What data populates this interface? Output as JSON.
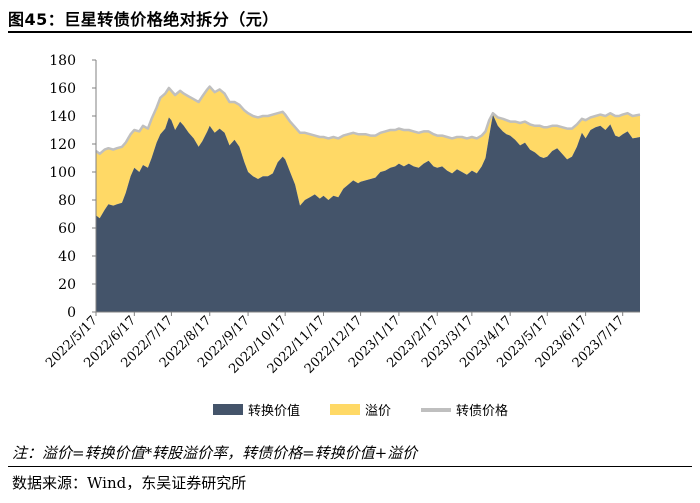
{
  "header": {
    "title": "图45：巨星转债价格绝对拆分（元）"
  },
  "footer": {
    "note": "注：溢价=转换价值*转股溢价率，转债价格=转换价值+溢价",
    "source": "数据来源：Wind，东吴证券研究所"
  },
  "colors": {
    "conversion": "#44546a",
    "premium": "#ffd966",
    "price": "#bfbfbf",
    "axis": "#808080"
  },
  "chart_data": {
    "type": "area",
    "title": "巨星转债价格绝对拆分（元）",
    "ylim": [
      0,
      180
    ],
    "yticks": [
      0,
      20,
      40,
      60,
      80,
      100,
      120,
      140,
      160,
      180
    ],
    "xticks": [
      "2022/5/17",
      "2022/6/17",
      "2022/7/17",
      "2022/8/17",
      "2022/9/17",
      "2022/10/17",
      "2022/11/17",
      "2022/12/17",
      "2023/1/17",
      "2023/2/17",
      "2023/3/17",
      "2023/4/17",
      "2023/5/17",
      "2023/6/17",
      "2023/7/17"
    ],
    "x_range": [
      "2022/5/17",
      "2023/7/31"
    ],
    "legend": [
      "转换价值",
      "溢价",
      "转债价格"
    ],
    "legend_position": "bottom",
    "series": [
      {
        "name": "转换价值",
        "kind": "stacked-area",
        "x": [
          "2022/5/17",
          "2022/5/20",
          "2022/5/24",
          "2022/5/27",
          "2022/5/31",
          "2022/6/3",
          "2022/6/7",
          "2022/6/10",
          "2022/6/14",
          "2022/6/17",
          "2022/6/21",
          "2022/6/24",
          "2022/6/28",
          "2022/7/1",
          "2022/7/5",
          "2022/7/8",
          "2022/7/12",
          "2022/7/15",
          "2022/7/17",
          "2022/7/20",
          "2022/7/24",
          "2022/7/27",
          "2022/7/31",
          "2022/8/4",
          "2022/8/8",
          "2022/8/11",
          "2022/8/15",
          "2022/8/17",
          "2022/8/21",
          "2022/8/25",
          "2022/8/29",
          "2022/9/2",
          "2022/9/6",
          "2022/9/10",
          "2022/9/14",
          "2022/9/17",
          "2022/9/21",
          "2022/9/25",
          "2022/9/29",
          "2022/10/3",
          "2022/10/7",
          "2022/10/11",
          "2022/10/15",
          "2022/10/17",
          "2022/10/21",
          "2022/10/25",
          "2022/10/29",
          "2022/11/2",
          "2022/11/6",
          "2022/11/10",
          "2022/11/14",
          "2022/11/17",
          "2022/11/21",
          "2022/11/25",
          "2022/11/29",
          "2022/12/3",
          "2022/12/7",
          "2022/12/11",
          "2022/12/15",
          "2022/12/17",
          "2022/12/21",
          "2022/12/25",
          "2022/12/29",
          "2023/1/2",
          "2023/1/6",
          "2023/1/10",
          "2023/1/14",
          "2023/1/17",
          "2023/1/21",
          "2023/1/25",
          "2023/1/29",
          "2023/2/2",
          "2023/2/6",
          "2023/2/10",
          "2023/2/14",
          "2023/2/17",
          "2023/2/21",
          "2023/2/25",
          "2023/3/1",
          "2023/3/5",
          "2023/3/9",
          "2023/3/13",
          "2023/3/17",
          "2023/3/21",
          "2023/3/25",
          "2023/3/28",
          "2023/3/31",
          "2023/4/3",
          "2023/4/7",
          "2023/4/11",
          "2023/4/14",
          "2023/4/17",
          "2023/4/21",
          "2023/4/25",
          "2023/4/29",
          "2023/5/3",
          "2023/5/7",
          "2023/5/11",
          "2023/5/14",
          "2023/5/17",
          "2023/5/21",
          "2023/5/25",
          "2023/5/29",
          "2023/6/2",
          "2023/6/6",
          "2023/6/10",
          "2023/6/14",
          "2023/6/17",
          "2023/6/21",
          "2023/6/25",
          "2023/6/29",
          "2023/7/3",
          "2023/7/7",
          "2023/7/11",
          "2023/7/14",
          "2023/7/17",
          "2023/7/21",
          "2023/7/25",
          "2023/7/31"
        ],
        "values": [
          69,
          67,
          73,
          77,
          76,
          77,
          78,
          85,
          97,
          103,
          100,
          105,
          103,
          110,
          121,
          127,
          131,
          139,
          137,
          130,
          136,
          133,
          128,
          124,
          118,
          122,
          129,
          133,
          128,
          131,
          128,
          119,
          123,
          118,
          107,
          100,
          97,
          95,
          97,
          97,
          99,
          107,
          111,
          109,
          100,
          91,
          76,
          80,
          82,
          84,
          81,
          83,
          80,
          83,
          82,
          88,
          91,
          94,
          92,
          93,
          94,
          95,
          96,
          100,
          101,
          103,
          104,
          106,
          104,
          106,
          104,
          103,
          106,
          108,
          104,
          103,
          104,
          101,
          99,
          102,
          100,
          98,
          101,
          99,
          104,
          110,
          126,
          141,
          133,
          129,
          127,
          126,
          123,
          119,
          121,
          116,
          114,
          111,
          110,
          111,
          115,
          117,
          113,
          109,
          111,
          118,
          128,
          124,
          130,
          132,
          133,
          130,
          134,
          126,
          125,
          127,
          129,
          124,
          125
        ]
      },
      {
        "name": "转债价格",
        "kind": "line",
        "x": [
          "2022/5/17",
          "2022/5/20",
          "2022/5/24",
          "2022/5/27",
          "2022/5/31",
          "2022/6/3",
          "2022/6/7",
          "2022/6/10",
          "2022/6/14",
          "2022/6/17",
          "2022/6/21",
          "2022/6/24",
          "2022/6/28",
          "2022/7/1",
          "2022/7/5",
          "2022/7/8",
          "2022/7/12",
          "2022/7/15",
          "2022/7/17",
          "2022/7/20",
          "2022/7/24",
          "2022/7/27",
          "2022/7/31",
          "2022/8/4",
          "2022/8/8",
          "2022/8/11",
          "2022/8/15",
          "2022/8/17",
          "2022/8/21",
          "2022/8/25",
          "2022/8/29",
          "2022/9/2",
          "2022/9/6",
          "2022/9/10",
          "2022/9/14",
          "2022/9/17",
          "2022/9/21",
          "2022/9/25",
          "2022/9/29",
          "2022/10/3",
          "2022/10/7",
          "2022/10/11",
          "2022/10/15",
          "2022/10/17",
          "2022/10/21",
          "2022/10/25",
          "2022/10/29",
          "2022/11/2",
          "2022/11/6",
          "2022/11/10",
          "2022/11/14",
          "2022/11/17",
          "2022/11/21",
          "2022/11/25",
          "2022/11/29",
          "2022/12/3",
          "2022/12/7",
          "2022/12/11",
          "2022/12/15",
          "2022/12/17",
          "2022/12/21",
          "2022/12/25",
          "2022/12/29",
          "2023/1/2",
          "2023/1/6",
          "2023/1/10",
          "2023/1/14",
          "2023/1/17",
          "2023/1/21",
          "2023/1/25",
          "2023/1/29",
          "2023/2/2",
          "2023/2/6",
          "2023/2/10",
          "2023/2/14",
          "2023/2/17",
          "2023/2/21",
          "2023/2/25",
          "2023/3/1",
          "2023/3/5",
          "2023/3/9",
          "2023/3/13",
          "2023/3/17",
          "2023/3/21",
          "2023/3/25",
          "2023/3/28",
          "2023/3/31",
          "2023/4/3",
          "2023/4/7",
          "2023/4/11",
          "2023/4/14",
          "2023/4/17",
          "2023/4/21",
          "2023/4/25",
          "2023/4/29",
          "2023/5/3",
          "2023/5/7",
          "2023/5/11",
          "2023/5/14",
          "2023/5/17",
          "2023/5/21",
          "2023/5/25",
          "2023/5/29",
          "2023/6/2",
          "2023/6/6",
          "2023/6/10",
          "2023/6/14",
          "2023/6/17",
          "2023/6/21",
          "2023/6/25",
          "2023/6/29",
          "2023/7/3",
          "2023/7/7",
          "2023/7/11",
          "2023/7/14",
          "2023/7/17",
          "2023/7/21",
          "2023/7/25",
          "2023/7/31"
        ],
        "values": [
          115,
          113,
          116,
          117,
          116,
          117,
          118,
          121,
          127,
          130,
          129,
          133,
          131,
          138,
          146,
          153,
          156,
          160,
          158,
          155,
          158,
          156,
          154,
          152,
          150,
          154,
          159,
          161,
          157,
          159,
          156,
          150,
          150,
          148,
          144,
          142,
          140,
          139,
          140,
          140,
          141,
          142,
          143,
          141,
          136,
          132,
          128,
          128,
          127,
          126,
          125,
          125,
          124,
          125,
          124,
          126,
          127,
          128,
          127,
          127,
          127,
          126,
          126,
          128,
          129,
          130,
          130,
          131,
          130,
          130,
          129,
          128,
          129,
          129,
          127,
          126,
          126,
          125,
          124,
          125,
          125,
          124,
          125,
          124,
          126,
          129,
          137,
          142,
          139,
          138,
          137,
          136,
          136,
          135,
          136,
          134,
          133,
          133,
          132,
          132,
          133,
          133,
          132,
          131,
          131,
          134,
          138,
          137,
          139,
          140,
          141,
          140,
          142,
          140,
          140,
          141,
          142,
          140,
          141
        ]
      }
    ]
  }
}
